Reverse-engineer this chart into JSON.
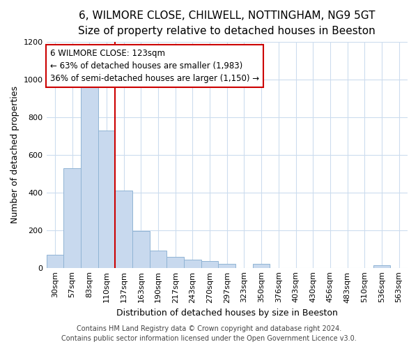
{
  "title1": "6, WILMORE CLOSE, CHILWELL, NOTTINGHAM, NG9 5GT",
  "title2": "Size of property relative to detached houses in Beeston",
  "xlabel": "Distribution of detached houses by size in Beeston",
  "ylabel": "Number of detached properties",
  "bin_labels": [
    "30sqm",
    "57sqm",
    "83sqm",
    "110sqm",
    "137sqm",
    "163sqm",
    "190sqm",
    "217sqm",
    "243sqm",
    "270sqm",
    "297sqm",
    "323sqm",
    "350sqm",
    "376sqm",
    "403sqm",
    "430sqm",
    "456sqm",
    "483sqm",
    "510sqm",
    "536sqm",
    "563sqm"
  ],
  "bar_heights": [
    70,
    530,
    1000,
    730,
    410,
    195,
    90,
    60,
    45,
    35,
    20,
    0,
    20,
    0,
    0,
    0,
    0,
    0,
    0,
    15,
    0
  ],
  "bar_color": "#c8d9ee",
  "bar_edge_color": "#90b4d4",
  "vline_pos": 3.5,
  "vline_color": "#cc0000",
  "annotation_line1": "6 WILMORE CLOSE: 123sqm",
  "annotation_line2": "← 63% of detached houses are smaller (1,983)",
  "annotation_line3": "36% of semi-detached houses are larger (1,150) →",
  "annotation_box_color": "#cc0000",
  "ylim": [
    0,
    1200
  ],
  "yticks": [
    0,
    200,
    400,
    600,
    800,
    1000,
    1200
  ],
  "footnote1": "Contains HM Land Registry data © Crown copyright and database right 2024.",
  "footnote2": "Contains public sector information licensed under the Open Government Licence v3.0.",
  "background_color": "#ffffff",
  "plot_bg_color": "#ffffff",
  "grid_color": "#ccdcee",
  "title1_fontsize": 11,
  "title2_fontsize": 10,
  "ylabel_fontsize": 9,
  "xlabel_fontsize": 9,
  "tick_fontsize": 8,
  "annot_fontsize": 8.5,
  "footnote_fontsize": 7
}
